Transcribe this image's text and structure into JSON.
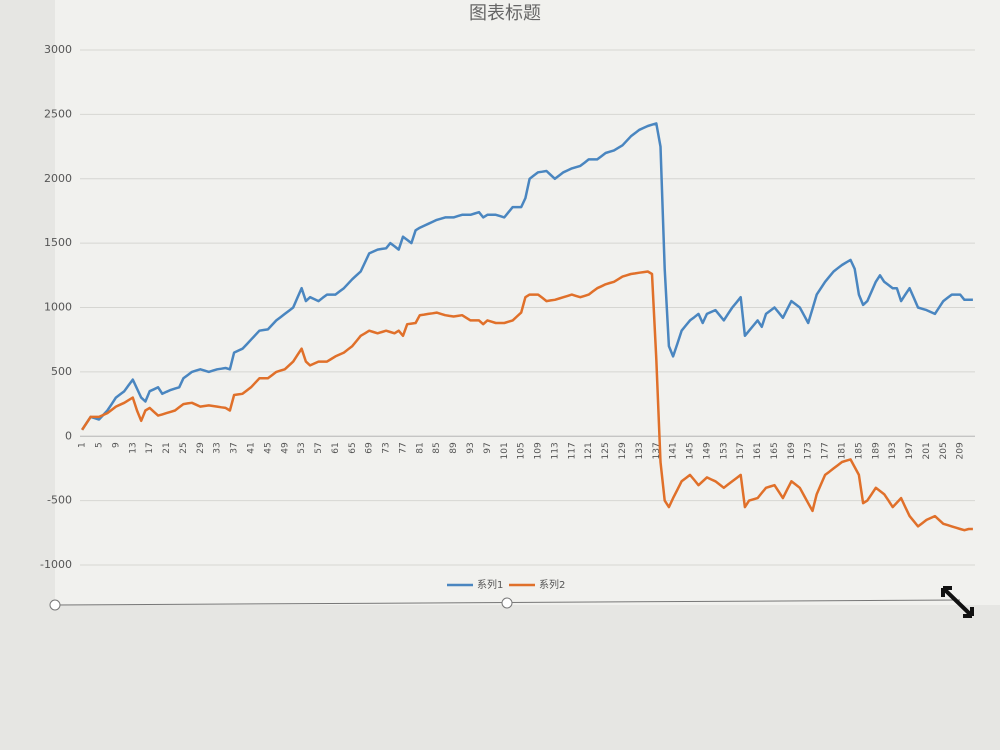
{
  "chart_data": {
    "type": "line",
    "title": "图表标题",
    "categories": [
      1,
      null,
      null,
      null,
      5,
      null,
      null,
      null,
      9,
      null,
      null,
      null,
      13,
      null,
      null,
      null,
      17,
      null,
      null,
      null,
      21,
      null,
      null,
      null,
      25,
      null,
      null,
      null,
      29,
      null,
      null,
      null,
      33,
      null,
      null,
      null,
      37,
      null,
      null,
      null,
      41,
      null,
      null,
      null,
      45,
      null,
      null,
      null,
      49,
      null,
      null,
      null,
      53,
      null,
      null,
      null,
      57,
      null,
      null,
      null,
      61,
      null,
      null,
      null,
      65,
      null,
      null,
      null,
      69,
      null,
      null,
      null,
      73,
      null,
      null,
      null,
      77,
      null,
      null,
      null,
      81,
      null,
      null,
      null,
      85,
      null,
      null,
      null,
      89,
      null,
      null,
      null,
      93,
      null,
      null,
      null,
      97,
      null,
      null,
      null,
      101,
      null,
      null,
      null,
      105,
      null,
      null,
      null,
      109,
      null,
      null,
      null,
      113,
      null,
      null,
      null,
      117,
      null,
      null,
      null,
      121,
      null,
      null,
      null,
      125,
      null,
      null,
      null,
      129,
      null,
      null,
      null,
      133,
      null,
      null,
      null,
      137,
      null,
      null,
      null,
      141,
      null,
      null,
      null,
      145,
      null,
      null,
      null,
      149,
      null,
      null,
      null,
      153,
      null,
      null,
      null,
      157,
      null,
      null,
      null,
      161,
      null,
      null,
      null,
      165,
      null,
      null,
      null,
      169,
      null,
      null,
      null,
      173,
      null,
      null,
      null,
      177,
      null,
      null,
      null,
      181,
      null,
      null,
      null,
      185,
      null,
      null,
      null,
      189,
      null,
      null,
      null,
      193,
      null,
      null,
      null,
      197,
      null,
      null,
      null,
      201,
      null,
      null,
      null,
      205,
      null,
      null,
      null,
      209,
      null,
      null,
      null
    ],
    "series": [
      {
        "name": "系列1",
        "color": "#4a86c0",
        "values": [
          50,
          100,
          150,
          140,
          130,
          165,
          200,
          250,
          300,
          325,
          350,
          395,
          440,
          370,
          300,
          270,
          350,
          365,
          380,
          330,
          345,
          360,
          370,
          380,
          450,
          475,
          500,
          510,
          520,
          510,
          500,
          510,
          520,
          525,
          530,
          520,
          650,
          665,
          680,
          715,
          750,
          785,
          820,
          825,
          830,
          865,
          900,
          925,
          950,
          975,
          1000,
          1075,
          1150,
          1050,
          1080,
          1065,
          1050,
          1075,
          1100,
          1100,
          1100,
          1125,
          1150,
          1185,
          1220,
          1250,
          1280,
          1350,
          1420,
          1435,
          1450,
          1455,
          1460,
          1500,
          1475,
          1450,
          1550,
          1525,
          1500,
          1600,
          1620,
          1635,
          1650,
          1665,
          1680,
          1690,
          1700,
          1700,
          1700,
          1710,
          1720,
          1720,
          1720,
          1730,
          1740,
          1700,
          1720,
          1720,
          1720,
          1710,
          1700,
          1740,
          1780,
          1780,
          1780,
          1850,
          2000,
          2025,
          2050,
          2055,
          2060,
          2030,
          2000,
          2025,
          2050,
          2065,
          2080,
          2090,
          2100,
          2125,
          2150,
          2150,
          2150,
          2175,
          2200,
          2210,
          2220,
          2240,
          2260,
          2295,
          2330,
          2355,
          2380,
          2395,
          2410,
          2420,
          2430,
          2250,
          1300,
          700,
          620,
          720,
          820,
          860,
          900,
          925,
          950,
          880,
          950,
          965,
          980,
          940,
          900,
          950,
          1000,
          1040,
          1080,
          780,
          820,
          860,
          900,
          850,
          950,
          975,
          1000,
          960,
          920,
          985,
          1050,
          1025,
          1000,
          940,
          880,
          990,
          1100,
          1150,
          1200,
          1240,
          1280,
          1305,
          1330,
          1350,
          1370,
          1300,
          1100,
          1020,
          1050,
          1125,
          1200,
          1250,
          1200,
          1175,
          1150,
          1150,
          1050,
          1100,
          1150,
          1075,
          1000,
          990,
          980,
          965,
          950,
          1000,
          1050,
          1075,
          1100,
          1100,
          1100,
          1060,
          1060,
          1060
        ]
      },
      {
        "name": "系列2",
        "color": "#e0702a",
        "values": [
          50,
          100,
          150,
          150,
          150,
          165,
          180,
          205,
          230,
          245,
          260,
          280,
          300,
          200,
          120,
          200,
          220,
          190,
          160,
          170,
          180,
          190,
          200,
          225,
          250,
          255,
          260,
          245,
          230,
          235,
          240,
          235,
          230,
          225,
          220,
          200,
          320,
          325,
          330,
          355,
          380,
          415,
          450,
          450,
          450,
          475,
          500,
          510,
          520,
          550,
          580,
          630,
          680,
          580,
          550,
          565,
          580,
          580,
          580,
          600,
          620,
          635,
          650,
          675,
          700,
          740,
          780,
          800,
          820,
          810,
          800,
          810,
          820,
          810,
          800,
          820,
          780,
          870,
          875,
          880,
          940,
          945,
          950,
          955,
          960,
          950,
          940,
          935,
          930,
          935,
          940,
          920,
          900,
          900,
          900,
          870,
          900,
          890,
          880,
          880,
          880,
          890,
          900,
          930,
          960,
          1080,
          1100,
          1100,
          1100,
          1075,
          1050,
          1055,
          1060,
          1070,
          1080,
          1090,
          1100,
          1090,
          1080,
          1090,
          1100,
          1125,
          1150,
          1165,
          1180,
          1190,
          1200,
          1220,
          1240,
          1250,
          1260,
          1265,
          1270,
          1275,
          1280,
          1260,
          600,
          -200,
          -500,
          -550,
          -480,
          -415,
          -350,
          -325,
          -300,
          -340,
          -380,
          -350,
          -320,
          -335,
          -350,
          -375,
          -400,
          -375,
          -350,
          -325,
          -300,
          -550,
          -500,
          -490,
          -480,
          -440,
          -400,
          -390,
          -380,
          -430,
          -480,
          -415,
          -350,
          -375,
          -400,
          -460,
          -520,
          -580,
          -450,
          -375,
          -300,
          -275,
          -250,
          -225,
          -200,
          -190,
          -180,
          -240,
          -300,
          -520,
          -500,
          -450,
          -400,
          -425,
          -450,
          -500,
          -550,
          -515,
          -480,
          -550,
          -620,
          -660,
          -700,
          -675,
          -650,
          -635,
          -620,
          -650,
          -680,
          -690,
          -700,
          -710,
          -720,
          -730,
          -720,
          -720
        ]
      }
    ],
    "ylim": [
      -1000,
      3000
    ],
    "yticks": [
      -1000,
      -500,
      0,
      500,
      1000,
      1500,
      2000,
      2500,
      3000
    ],
    "grid": true,
    "legend": "bottom"
  }
}
